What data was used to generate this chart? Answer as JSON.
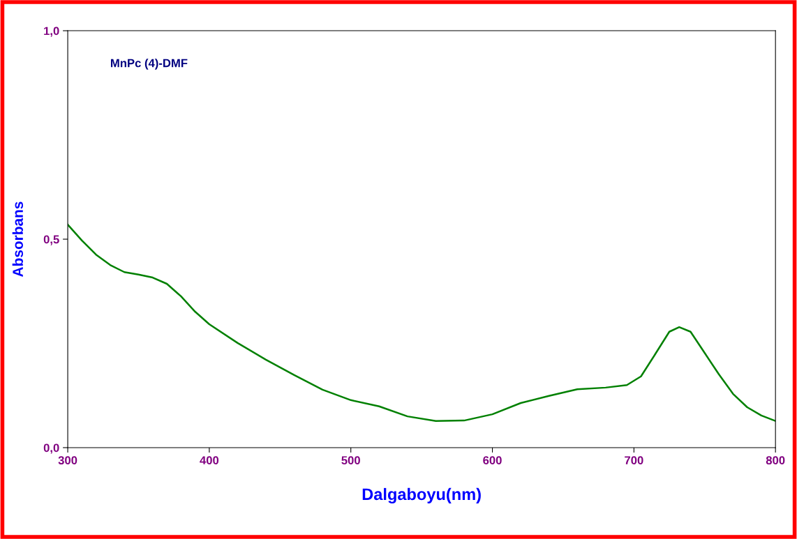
{
  "chart_data": {
    "type": "line",
    "xlabel": "Dalgaboyu(nm)",
    "ylabel": "Absorbans",
    "annotations": [
      "MnPc (4)-DMF"
    ],
    "xlim": [
      300,
      800
    ],
    "xticks": [
      300,
      400,
      500,
      600,
      700,
      800
    ],
    "ylim": [
      0,
      1.0
    ],
    "yticks": [
      {
        "value": 0,
        "label": "0,0"
      },
      {
        "value": 0.5,
        "label": "0,5"
      },
      {
        "value": 1.0,
        "label": "1,0"
      }
    ],
    "grid": false,
    "marker": "none",
    "line_style": "solid",
    "series": [
      {
        "color": "#008000",
        "x": [
          300,
          310,
          320,
          330,
          340,
          350,
          360,
          370,
          380,
          390,
          400,
          420,
          440,
          460,
          480,
          500,
          520,
          540,
          560,
          580,
          600,
          620,
          640,
          660,
          680,
          695,
          705,
          715,
          725,
          732,
          740,
          750,
          760,
          770,
          780,
          790,
          800
        ],
        "values": [
          0.535,
          0.497,
          0.463,
          0.438,
          0.421,
          0.415,
          0.408,
          0.393,
          0.363,
          0.326,
          0.296,
          0.251,
          0.211,
          0.174,
          0.139,
          0.114,
          0.099,
          0.075,
          0.064,
          0.065,
          0.08,
          0.107,
          0.124,
          0.14,
          0.144,
          0.15,
          0.171,
          0.224,
          0.278,
          0.289,
          0.278,
          0.227,
          0.176,
          0.129,
          0.097,
          0.077,
          0.064
        ]
      }
    ]
  }
}
